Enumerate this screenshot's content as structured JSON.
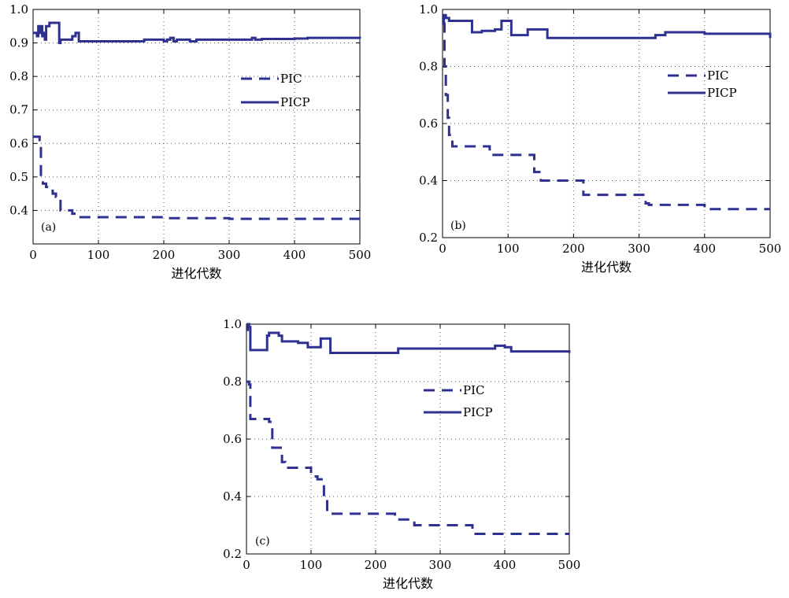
{
  "figure": {
    "colors": {
      "series": "#2e3192",
      "grid": "#555555",
      "frame": "#000000"
    }
  },
  "chart_data": [
    {
      "type": "line",
      "panel_label": "(a)",
      "xlabel": "进化代数",
      "ylabel": "",
      "xlim": [
        0,
        500
      ],
      "ylim": [
        0.3,
        1.0
      ],
      "xticks": [
        0,
        100,
        200,
        300,
        400,
        500
      ],
      "yticks": [
        0.4,
        0.5,
        0.6,
        0.7,
        0.8,
        0.9,
        1.0
      ],
      "ytick_labels": [
        "0.4",
        "0.5",
        "0.6",
        "0.7",
        "0.8",
        "0.9",
        "1.0"
      ],
      "grid": true,
      "legend_position": "upper-right",
      "series": [
        {
          "name": "PIC",
          "style": "dashed",
          "x": [
            0,
            10,
            12,
            15,
            20,
            30,
            35,
            42,
            60,
            70,
            80,
            150,
            200,
            300,
            400,
            500
          ],
          "y": [
            0.62,
            0.61,
            0.5,
            0.48,
            0.47,
            0.45,
            0.44,
            0.4,
            0.39,
            0.38,
            0.38,
            0.38,
            0.377,
            0.375,
            0.375,
            0.375
          ]
        },
        {
          "name": "PICP",
          "style": "solid",
          "x": [
            0,
            3,
            6,
            8,
            10,
            12,
            14,
            16,
            18,
            20,
            25,
            35,
            40,
            42,
            45,
            55,
            60,
            65,
            70,
            100,
            160,
            170,
            200,
            205,
            210,
            215,
            220,
            240,
            250,
            300,
            330,
            335,
            340,
            350,
            400,
            420,
            500
          ],
          "y": [
            0.93,
            0.93,
            0.92,
            0.95,
            0.93,
            0.95,
            0.92,
            0.93,
            0.91,
            0.95,
            0.96,
            0.96,
            0.9,
            0.91,
            0.91,
            0.91,
            0.92,
            0.93,
            0.905,
            0.905,
            0.905,
            0.91,
            0.905,
            0.91,
            0.915,
            0.905,
            0.91,
            0.905,
            0.91,
            0.91,
            0.91,
            0.915,
            0.91,
            0.912,
            0.913,
            0.915,
            0.913
          ]
        }
      ]
    },
    {
      "type": "line",
      "panel_label": "(b)",
      "xlabel": "进化代数",
      "ylabel": "",
      "xlim": [
        0,
        500
      ],
      "ylim": [
        0.2,
        1.0
      ],
      "xticks": [
        0,
        100,
        200,
        300,
        400,
        500
      ],
      "yticks": [
        0.2,
        0.4,
        0.6,
        0.8,
        1.0
      ],
      "ytick_labels": [
        "0.2",
        "0.4",
        "0.6",
        "0.8",
        "1.0"
      ],
      "grid": true,
      "legend_position": "upper-right",
      "series": [
        {
          "name": "PIC",
          "style": "dashed",
          "x": [
            0,
            3,
            5,
            8,
            10,
            15,
            20,
            70,
            72,
            90,
            100,
            130,
            140,
            150,
            155,
            210,
            215,
            260,
            305,
            310,
            315,
            400,
            500
          ],
          "y": [
            0.95,
            0.8,
            0.7,
            0.62,
            0.56,
            0.52,
            0.52,
            0.52,
            0.49,
            0.49,
            0.49,
            0.49,
            0.43,
            0.4,
            0.4,
            0.4,
            0.35,
            0.35,
            0.35,
            0.32,
            0.315,
            0.3,
            0.3
          ]
        },
        {
          "name": "PICP",
          "style": "solid",
          "x": [
            0,
            2,
            5,
            10,
            40,
            45,
            60,
            80,
            90,
            100,
            105,
            120,
            130,
            145,
            160,
            300,
            325,
            340,
            400,
            470,
            500
          ],
          "y": [
            0.95,
            0.98,
            0.97,
            0.96,
            0.96,
            0.92,
            0.925,
            0.93,
            0.96,
            0.96,
            0.91,
            0.91,
            0.93,
            0.93,
            0.9,
            0.9,
            0.91,
            0.92,
            0.915,
            0.915,
            0.9
          ]
        }
      ]
    },
    {
      "type": "line",
      "panel_label": "(c)",
      "xlabel": "进化代数",
      "ylabel": "",
      "xlim": [
        0,
        500
      ],
      "ylim": [
        0.2,
        1.0
      ],
      "xticks": [
        0,
        100,
        200,
        300,
        400,
        500
      ],
      "yticks": [
        0.2,
        0.4,
        0.6,
        0.8,
        1.0
      ],
      "ytick_labels": [
        "0.2",
        "0.4",
        "0.6",
        "0.8",
        "1.0"
      ],
      "grid": true,
      "legend_position": "upper-right",
      "series": [
        {
          "name": "PIC",
          "style": "dashed",
          "x": [
            0,
            4,
            6,
            10,
            20,
            30,
            35,
            40,
            50,
            55,
            60,
            70,
            100,
            110,
            120,
            125,
            128,
            200,
            230,
            235,
            240,
            260,
            345,
            350,
            400,
            500
          ],
          "y": [
            0.8,
            0.79,
            0.67,
            0.67,
            0.67,
            0.67,
            0.66,
            0.57,
            0.57,
            0.52,
            0.5,
            0.5,
            0.47,
            0.46,
            0.4,
            0.34,
            0.34,
            0.34,
            0.33,
            0.32,
            0.32,
            0.3,
            0.3,
            0.27,
            0.27,
            0.27
          ]
        },
        {
          "name": "PICP",
          "style": "solid",
          "x": [
            0,
            2,
            4,
            6,
            30,
            32,
            35,
            50,
            55,
            60,
            75,
            80,
            95,
            110,
            115,
            125,
            130,
            230,
            235,
            380,
            385,
            395,
            400,
            410,
            500
          ],
          "y": [
            0.98,
            1.0,
            0.99,
            0.91,
            0.91,
            0.96,
            0.97,
            0.96,
            0.94,
            0.94,
            0.94,
            0.935,
            0.92,
            0.92,
            0.95,
            0.95,
            0.9,
            0.9,
            0.915,
            0.915,
            0.925,
            0.925,
            0.92,
            0.905,
            0.9
          ]
        }
      ]
    }
  ]
}
